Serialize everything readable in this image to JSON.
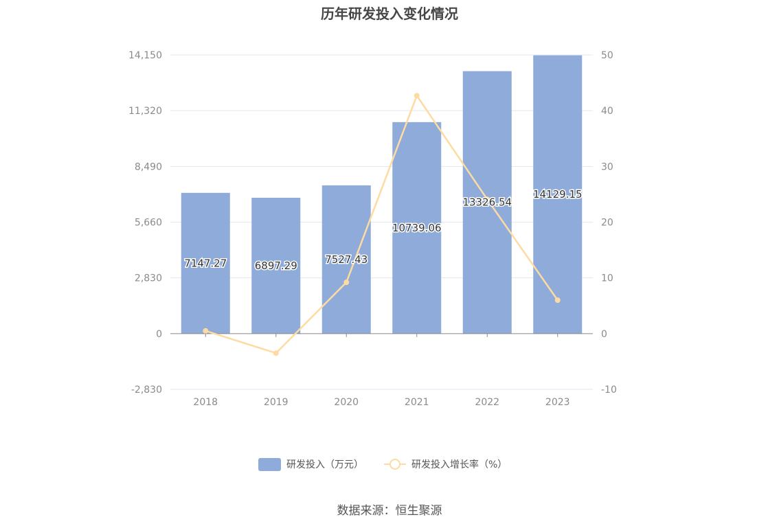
{
  "title": "历年研发投入变化情况",
  "source": "数据来源：恒生聚源",
  "colors": {
    "bar": "#8eabd9",
    "line": "#fddba3",
    "grid": "#e3e6f3",
    "axis": "#888888"
  },
  "chart_data": {
    "type": "bar",
    "title": "历年研发投入变化情况",
    "categories": [
      "2018",
      "2019",
      "2020",
      "2021",
      "2022",
      "2023"
    ],
    "series": [
      {
        "name": "研发投入（万元）",
        "type": "bar",
        "axis": "left",
        "values": [
          7147.27,
          6897.29,
          7527.43,
          10739.06,
          13326.54,
          14129.15
        ],
        "labels": [
          "7147.27",
          "6897.29",
          "7527.43",
          "10739.06",
          "13326.54",
          "14129.15"
        ]
      },
      {
        "name": "研发投入增长率（%）",
        "type": "line",
        "axis": "right",
        "values": [
          0.5,
          -3.5,
          9.2,
          42.7,
          24.1,
          6.0
        ]
      }
    ],
    "y_left": {
      "min": -2830,
      "max": 14150,
      "ticks": [
        "-2,830",
        "0",
        "2,830",
        "5,660",
        "8,490",
        "11,320",
        "14,150"
      ]
    },
    "y_right": {
      "min": -10,
      "max": 50,
      "ticks": [
        "-10",
        "0",
        "10",
        "20",
        "30",
        "40",
        "50"
      ]
    },
    "grid": true,
    "legend_position": "bottom"
  }
}
